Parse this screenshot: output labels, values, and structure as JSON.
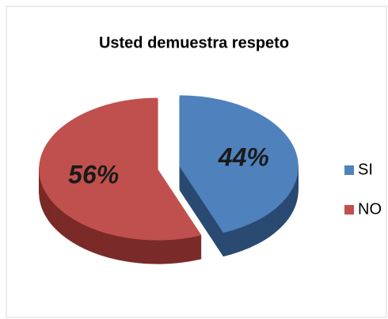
{
  "chart_data": {
    "type": "pie",
    "title": "Usted demuestra respeto",
    "categories": [
      "SI",
      "NO"
    ],
    "values": [
      44,
      56
    ],
    "value_labels": [
      "44%",
      "56%"
    ],
    "colors": [
      "#4f81bd",
      "#c0504d"
    ],
    "side_colors": [
      "#2a4a72",
      "#7a2a28"
    ],
    "legend": "right"
  }
}
